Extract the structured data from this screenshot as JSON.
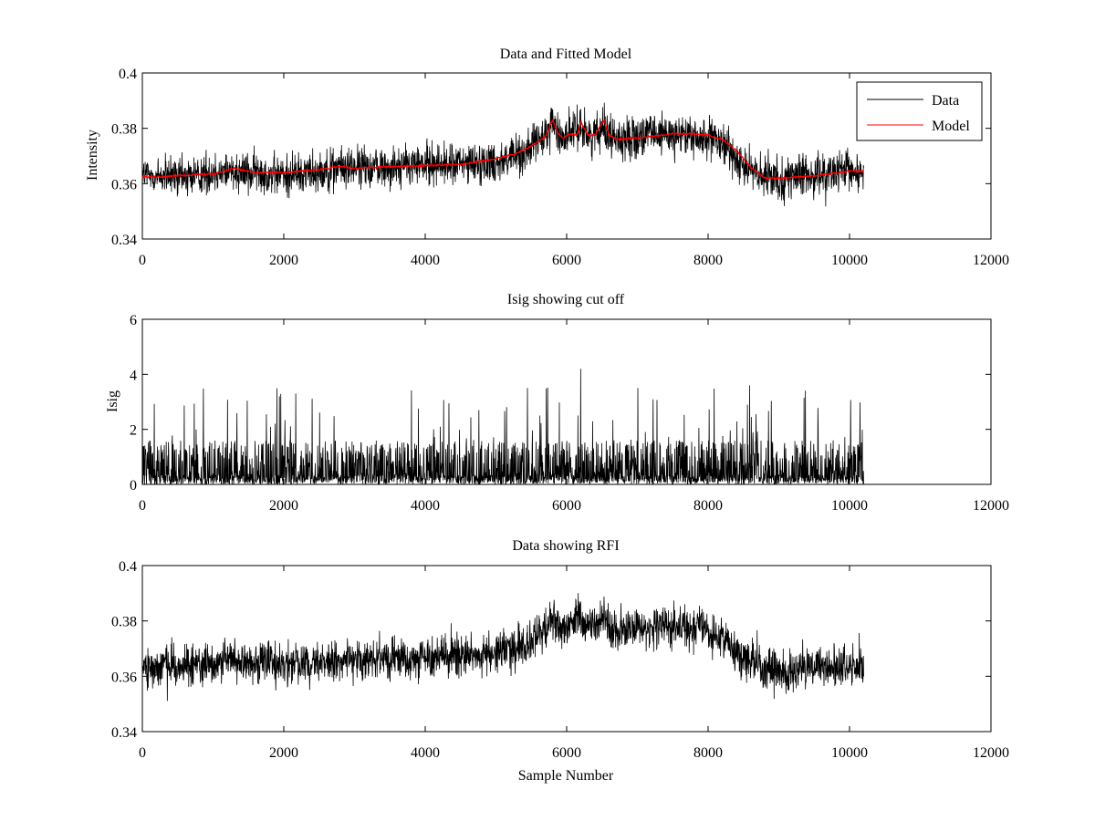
{
  "chart_data": [
    {
      "type": "line",
      "title": "Data and Fitted Model",
      "xlabel": "",
      "ylabel": "Intensity",
      "xlim": [
        0,
        12000
      ],
      "ylim": [
        0.34,
        0.4
      ],
      "xticks": [
        0,
        2000,
        4000,
        6000,
        8000,
        10000,
        12000
      ],
      "xtick_labels": [
        "0",
        "2000",
        "4000",
        "6000",
        "8000",
        "10000",
        "12000"
      ],
      "yticks": [
        0.34,
        0.36,
        0.38,
        0.4
      ],
      "ytick_labels": [
        "0.34",
        "0.36",
        "0.38",
        "0.4"
      ],
      "legend": {
        "position": "top-right",
        "entries": [
          "Data",
          "Model"
        ]
      },
      "series": [
        {
          "name": "Data",
          "color": "#000000",
          "kind": "noisy",
          "x": [
            0,
            500,
            1000,
            1300,
            1600,
            2000,
            2500,
            3000,
            3500,
            4000,
            4500,
            5000,
            5400,
            5700,
            5800,
            5900,
            6000,
            6100,
            6200,
            6300,
            6400,
            6500,
            6600,
            6700,
            7000,
            7500,
            8000,
            8300,
            8600,
            8800,
            9000,
            9500,
            10000,
            10200
          ],
          "y": [
            0.363,
            0.362,
            0.364,
            0.365,
            0.364,
            0.363,
            0.365,
            0.366,
            0.366,
            0.367,
            0.367,
            0.368,
            0.371,
            0.377,
            0.382,
            0.377,
            0.378,
            0.379,
            0.381,
            0.378,
            0.377,
            0.382,
            0.378,
            0.376,
            0.377,
            0.378,
            0.376,
            0.372,
            0.365,
            0.362,
            0.362,
            0.363,
            0.364,
            0.364
          ],
          "noise_amplitude": 0.011
        },
        {
          "name": "Model",
          "color": "#ff0000",
          "kind": "smooth",
          "x": [
            0,
            300,
            600,
            1000,
            1300,
            1600,
            2000,
            2500,
            2800,
            3000,
            3500,
            4000,
            4500,
            5000,
            5300,
            5500,
            5700,
            5800,
            5880,
            5950,
            6050,
            6150,
            6200,
            6300,
            6400,
            6480,
            6530,
            6600,
            6700,
            7000,
            7500,
            7800,
            8000,
            8200,
            8400,
            8600,
            8800,
            9000,
            9500,
            10000,
            10200
          ],
          "y": [
            0.3625,
            0.3625,
            0.363,
            0.3635,
            0.3655,
            0.364,
            0.364,
            0.365,
            0.3663,
            0.3655,
            0.3662,
            0.3665,
            0.367,
            0.369,
            0.371,
            0.3735,
            0.377,
            0.383,
            0.378,
            0.3765,
            0.378,
            0.3775,
            0.3825,
            0.3775,
            0.3775,
            0.381,
            0.383,
            0.3775,
            0.376,
            0.3765,
            0.378,
            0.378,
            0.3775,
            0.376,
            0.372,
            0.366,
            0.362,
            0.362,
            0.3628,
            0.3645,
            0.3645
          ]
        }
      ]
    },
    {
      "type": "line",
      "title": "Isig showing cut off",
      "xlabel": "",
      "ylabel": "Isig",
      "xlim": [
        0,
        12000
      ],
      "ylim": [
        0,
        6
      ],
      "xticks": [
        0,
        2000,
        4000,
        6000,
        8000,
        10000,
        12000
      ],
      "xtick_labels": [
        "0",
        "2000",
        "4000",
        "6000",
        "8000",
        "10000",
        "12000"
      ],
      "yticks": [
        0,
        2,
        4,
        6
      ],
      "ytick_labels": [
        "0",
        "2",
        "4",
        "6"
      ],
      "series": [
        {
          "name": "Isig",
          "color": "#000000",
          "kind": "abs-noise",
          "x_range": [
            0,
            10200
          ],
          "typical_max": 1.6,
          "spike_max": 3.6,
          "peak": {
            "x": 6200,
            "y": 4.2
          }
        }
      ]
    },
    {
      "type": "line",
      "title": "Data showing RFI",
      "xlabel": "Sample Number",
      "ylabel": "",
      "xlim": [
        0,
        12000
      ],
      "ylim": [
        0.34,
        0.4
      ],
      "xticks": [
        0,
        2000,
        4000,
        6000,
        8000,
        10000,
        12000
      ],
      "xtick_labels": [
        "0",
        "2000",
        "4000",
        "6000",
        "8000",
        "10000",
        "12000"
      ],
      "yticks": [
        0.34,
        0.36,
        0.38,
        0.4
      ],
      "ytick_labels": [
        "0.34",
        "0.36",
        "0.38",
        "0.4"
      ],
      "series": [
        {
          "name": "Data",
          "color": "#000000",
          "kind": "noisy",
          "x": [
            0,
            500,
            1000,
            1300,
            1600,
            2000,
            2500,
            3000,
            3500,
            4000,
            4500,
            5000,
            5400,
            5700,
            5800,
            5900,
            6000,
            6100,
            6200,
            6300,
            6400,
            6500,
            6600,
            6700,
            7000,
            7500,
            8000,
            8300,
            8600,
            8800,
            9000,
            9500,
            10000,
            10200
          ],
          "y": [
            0.364,
            0.363,
            0.365,
            0.366,
            0.365,
            0.364,
            0.365,
            0.366,
            0.366,
            0.367,
            0.367,
            0.368,
            0.371,
            0.377,
            0.381,
            0.377,
            0.378,
            0.379,
            0.381,
            0.378,
            0.377,
            0.382,
            0.378,
            0.376,
            0.377,
            0.378,
            0.376,
            0.372,
            0.365,
            0.362,
            0.362,
            0.363,
            0.364,
            0.364
          ],
          "noise_amplitude": 0.011
        }
      ]
    }
  ]
}
